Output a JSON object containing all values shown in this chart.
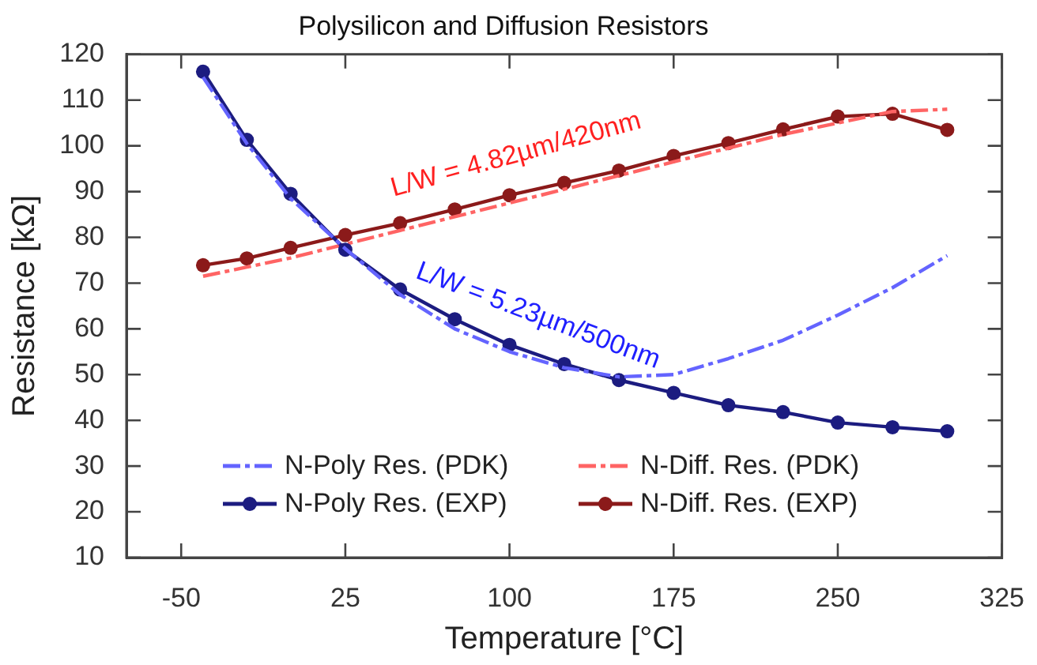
{
  "chart_data": {
    "type": "line",
    "title": "Polysilicon and Diffusion Resistors",
    "xlabel": "Temperature [°C]",
    "ylabel": "Resistance [kΩ]",
    "x": [
      -40,
      -20,
      0,
      25,
      50,
      75,
      100,
      125,
      150,
      175,
      200,
      225,
      250,
      275,
      300
    ],
    "xlim": [
      -75,
      325
    ],
    "xticks": [
      -50,
      25,
      100,
      175,
      250,
      325
    ],
    "ylim": [
      10,
      120
    ],
    "yticks": [
      10,
      20,
      30,
      40,
      50,
      60,
      70,
      80,
      90,
      100,
      110,
      120
    ],
    "legend": "bottom",
    "series": [
      {
        "name": "N-Poly Res. (PDK)",
        "color": "#6464ff",
        "marker": "none",
        "line_style": "dashed",
        "values": [
          115,
          100.5,
          88.5,
          77.5,
          67.5,
          60,
          55,
          51.5,
          49.5,
          50,
          53.5,
          57.5,
          63,
          69,
          76
        ]
      },
      {
        "name": "N-Poly Res. (EXP)",
        "color": "#1c1c80",
        "marker": "circle",
        "line_style": "solid",
        "values": [
          116.2,
          101.3,
          89.5,
          77.3,
          68.6,
          62.1,
          56.5,
          52.3,
          48.8,
          46.0,
          43.3,
          41.8,
          39.5,
          38.5,
          37.6
        ]
      },
      {
        "name": "N-Diff. Res. (PDK)",
        "color": "#ff6464",
        "marker": "none",
        "line_style": "dashed",
        "values": [
          71.5,
          73.5,
          75.5,
          78.5,
          81.5,
          84.5,
          87.5,
          90.5,
          93.5,
          96.5,
          99.5,
          102.5,
          105,
          107.5,
          108
        ]
      },
      {
        "name": "N-Diff. Res. (EXP)",
        "color": "#8b1a1a",
        "marker": "circle",
        "line_style": "solid",
        "values": [
          73.9,
          75.4,
          77.7,
          80.5,
          83.1,
          86.1,
          89.2,
          91.9,
          94.6,
          97.8,
          100.6,
          103.6,
          106.4,
          107.0,
          103.5
        ]
      }
    ],
    "annotations": [
      "L/W = 4.82µm/420nm",
      "L/W = 5.23µm/500nm"
    ]
  }
}
